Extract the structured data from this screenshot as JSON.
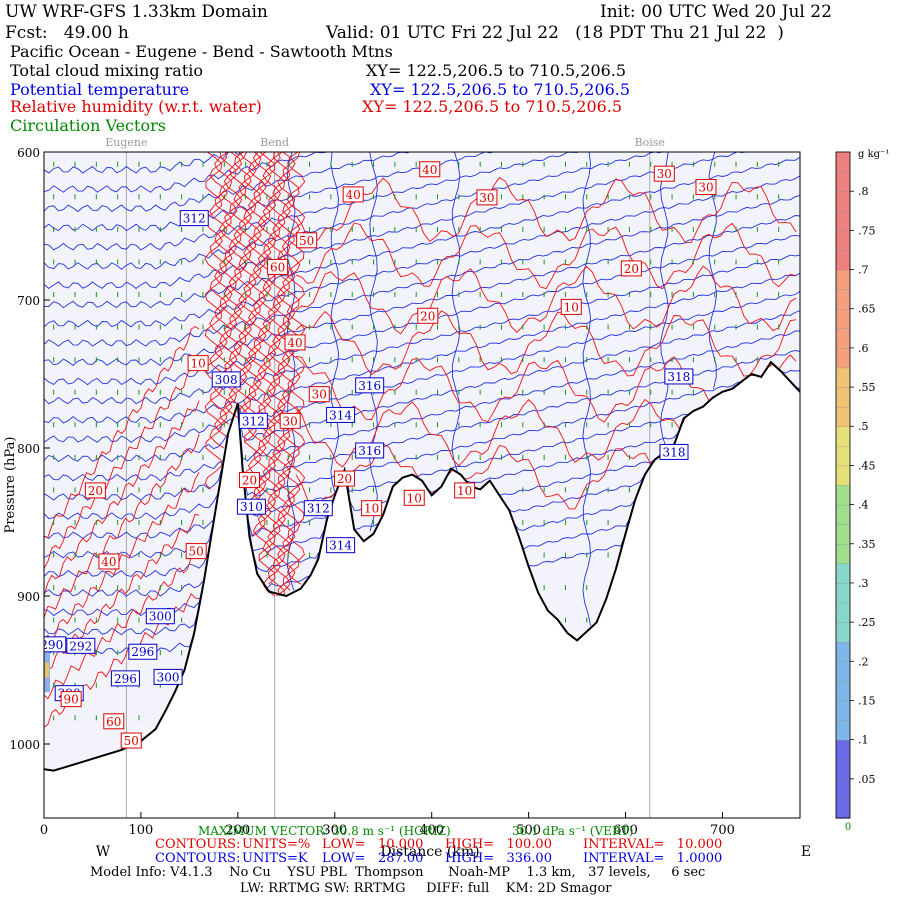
{
  "header": {
    "title_left": "UW WRF-GFS 1.33km Domain",
    "init": "Init: 00 UTC Wed 20 Jul 22",
    "fcst": "Fcst:   49.00 h",
    "valid": "Valid: 01 UTC Fri 22 Jul 22   (18 PDT Thu 21 Jul 22  )",
    "region": "Pacific Ocean - Eugene - Bend - Sawtooth Mtns",
    "lines": [
      {
        "label": "Total cloud mixing ratio",
        "xy": "XY= 122.5,206.5 to 710.5,206.5",
        "color": "#000000"
      },
      {
        "label": "Potential temperature",
        "xy": "XY= 122.5,206.5 to 710.5,206.5",
        "color": "#0000dd"
      },
      {
        "label": "Relative humidity (w.r.t. water)",
        "xy": "XY= 122.5,206.5 to 710.5,206.5",
        "color": "#dd0000"
      },
      {
        "label": "Circulation Vectors",
        "xy": "",
        "color": "#008800"
      }
    ]
  },
  "chart_data": {
    "type": "cross-section",
    "xlabel": "Distance (km)",
    "ylabel": "Pressure (hPa)",
    "xlim": [
      0,
      780
    ],
    "ylim": [
      1050,
      600
    ],
    "x_ticks": [
      0,
      100,
      200,
      300,
      400,
      500,
      600,
      700
    ],
    "y_ticks": [
      {
        "value": 600,
        "label": "600"
      },
      {
        "value": 700,
        "label": "700"
      },
      {
        "value": 800,
        "label": "800"
      },
      {
        "value": 900,
        "label": "900"
      },
      {
        "value": 1000,
        "label": "1000"
      }
    ],
    "direction_left": "W",
    "direction_right": "E",
    "locations": [
      {
        "name": "Eugene",
        "x": 85
      },
      {
        "name": "Bend",
        "x": 238
      },
      {
        "name": "Boise",
        "x": 625
      }
    ],
    "terrain_hpa": [
      [
        0,
        1017
      ],
      [
        10,
        1018
      ],
      [
        20,
        1016
      ],
      [
        40,
        1012
      ],
      [
        60,
        1008
      ],
      [
        80,
        1004
      ],
      [
        100,
        998
      ],
      [
        115,
        990
      ],
      [
        125,
        978
      ],
      [
        135,
        965
      ],
      [
        145,
        950
      ],
      [
        155,
        925
      ],
      [
        165,
        890
      ],
      [
        175,
        850
      ],
      [
        185,
        810
      ],
      [
        190,
        790
      ],
      [
        200,
        770
      ],
      [
        205,
        815
      ],
      [
        212,
        860
      ],
      [
        220,
        885
      ],
      [
        232,
        897
      ],
      [
        250,
        900
      ],
      [
        265,
        895
      ],
      [
        275,
        886
      ],
      [
        283,
        875
      ],
      [
        292,
        848
      ],
      [
        300,
        832
      ],
      [
        310,
        815
      ],
      [
        320,
        855
      ],
      [
        330,
        863
      ],
      [
        340,
        858
      ],
      [
        350,
        845
      ],
      [
        360,
        826
      ],
      [
        370,
        820
      ],
      [
        380,
        818
      ],
      [
        390,
        822
      ],
      [
        400,
        832
      ],
      [
        410,
        826
      ],
      [
        420,
        814
      ],
      [
        430,
        818
      ],
      [
        440,
        826
      ],
      [
        450,
        828
      ],
      [
        460,
        822
      ],
      [
        470,
        832
      ],
      [
        480,
        842
      ],
      [
        490,
        860
      ],
      [
        500,
        880
      ],
      [
        510,
        898
      ],
      [
        520,
        910
      ],
      [
        530,
        916
      ],
      [
        540,
        925
      ],
      [
        550,
        930
      ],
      [
        560,
        924
      ],
      [
        570,
        918
      ],
      [
        580,
        902
      ],
      [
        590,
        882
      ],
      [
        600,
        858
      ],
      [
        610,
        835
      ],
      [
        620,
        818
      ],
      [
        630,
        808
      ],
      [
        640,
        803
      ],
      [
        650,
        798
      ],
      [
        660,
        780
      ],
      [
        670,
        775
      ],
      [
        680,
        772
      ],
      [
        690,
        766
      ],
      [
        700,
        762
      ],
      [
        710,
        760
      ],
      [
        720,
        755
      ],
      [
        730,
        750
      ],
      [
        740,
        752
      ],
      [
        750,
        742
      ],
      [
        760,
        748
      ],
      [
        770,
        755
      ],
      [
        780,
        762
      ]
    ],
    "theta_labels": [
      {
        "text": "312",
        "x": 155,
        "p": 645
      },
      {
        "text": "308",
        "x": 188,
        "p": 754
      },
      {
        "text": "312",
        "x": 216,
        "p": 782
      },
      {
        "text": "316",
        "x": 336,
        "p": 758
      },
      {
        "text": "314",
        "x": 306,
        "p": 778
      },
      {
        "text": "316",
        "x": 336,
        "p": 802
      },
      {
        "text": "310",
        "x": 214,
        "p": 840
      },
      {
        "text": "312",
        "x": 283,
        "p": 841
      },
      {
        "text": "314",
        "x": 306,
        "p": 866
      },
      {
        "text": "318",
        "x": 655,
        "p": 752
      },
      {
        "text": "318",
        "x": 650,
        "p": 803
      },
      {
        "text": "300",
        "x": 120,
        "p": 914
      },
      {
        "text": "296",
        "x": 102,
        "p": 938
      },
      {
        "text": "296",
        "x": 84,
        "p": 956
      },
      {
        "text": "300",
        "x": 128,
        "p": 955
      },
      {
        "text": "292",
        "x": 38,
        "p": 934
      },
      {
        "text": "290",
        "x": 26,
        "p": 966
      },
      {
        "text": "290",
        "x": 8,
        "p": 933
      }
    ],
    "rh_labels": [
      {
        "text": "40",
        "x": 398,
        "p": 612
      },
      {
        "text": "30",
        "x": 640,
        "p": 615
      },
      {
        "text": "30",
        "x": 683,
        "p": 624
      },
      {
        "text": "40",
        "x": 319,
        "p": 629
      },
      {
        "text": "30",
        "x": 457,
        "p": 631
      },
      {
        "text": "50",
        "x": 271,
        "p": 660
      },
      {
        "text": "60",
        "x": 241,
        "p": 678
      },
      {
        "text": "20",
        "x": 606,
        "p": 679
      },
      {
        "text": "10",
        "x": 544,
        "p": 705
      },
      {
        "text": "20",
        "x": 396,
        "p": 711
      },
      {
        "text": "40",
        "x": 259,
        "p": 729
      },
      {
        "text": "10",
        "x": 159,
        "p": 743
      },
      {
        "text": "30",
        "x": 284,
        "p": 764
      },
      {
        "text": "30",
        "x": 254,
        "p": 782
      },
      {
        "text": "20",
        "x": 310,
        "p": 821
      },
      {
        "text": "10",
        "x": 338,
        "p": 841
      },
      {
        "text": "10",
        "x": 382,
        "p": 834
      },
      {
        "text": "10",
        "x": 434,
        "p": 829
      },
      {
        "text": "20",
        "x": 212,
        "p": 822
      },
      {
        "text": "20",
        "x": 53,
        "p": 829
      },
      {
        "text": "40",
        "x": 67,
        "p": 877
      },
      {
        "text": "50",
        "x": 157,
        "p": 870
      },
      {
        "text": "60",
        "x": 72,
        "p": 985
      },
      {
        "text": "90",
        "x": 28,
        "p": 970
      },
      {
        "text": "50",
        "x": 90,
        "p": 998
      }
    ],
    "colorbar": {
      "unit": "g kg⁻¹",
      "min": 0,
      "max": 0.85,
      "ticks": [
        ".05",
        ".1",
        ".15",
        ".2",
        ".25",
        ".3",
        ".35",
        ".4",
        ".45",
        ".5",
        ".55",
        ".6",
        ".65",
        ".7",
        ".75",
        ".8"
      ],
      "bottom_label": "0"
    },
    "max_vector": "MAXIMUM VECTOR: 30.8 m s⁻¹ (HORIZ)",
    "max_vector_vert": "30.1 dPa s⁻¹ (VERT)"
  },
  "contour_info": [
    {
      "label": "CONTOURS:",
      "units": "UNITS=%",
      "low": "LOW=   10.000",
      "high": "HIGH=   100.00",
      "interval": "INTERVAL=   10.000",
      "color": "#dd0000"
    },
    {
      "label": "CONTOURS:",
      "units": "UNITS=K",
      "low": "LOW=   287.00",
      "high": "HIGH=   336.00",
      "interval": "INTERVAL=   1.0000",
      "color": "#0000dd"
    }
  ],
  "model_info": "Model Info: V4.1.3    No Cu    YSU PBL  Thompson      Noah-MP    1.3 km,   37 levels,     6 sec",
  "model_info2": "LW: RRTMG SW: RRTMG     DIFF: full    KM: 2D Smagor"
}
